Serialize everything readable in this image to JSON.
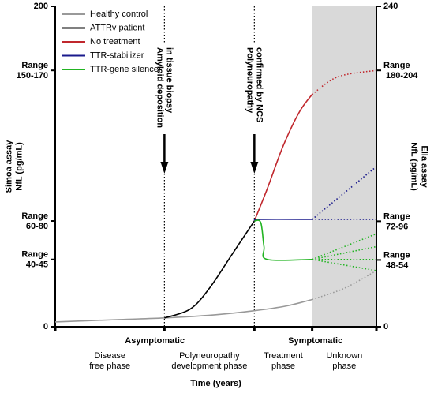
{
  "chart_data": {
    "type": "line",
    "xlabel": "Time (years)",
    "ylabel": [
      "Simoa assay",
      "NfL (pg/mL)"
    ],
    "y2label": [
      "Ella assay",
      "NfL (pg/mL)"
    ],
    "xlim": [
      0,
      100
    ],
    "ylim": [
      0,
      200
    ],
    "y2lim": [
      0,
      240
    ],
    "yticks": [
      0,
      {
        "value": 42,
        "label": "Range 40-45"
      },
      {
        "value": 66,
        "label": "Range 60-80"
      },
      {
        "value": 160,
        "label": "Range 150-170"
      },
      200
    ],
    "y2ticks": [
      0,
      {
        "value": 50,
        "label": "Range 48-54"
      },
      {
        "value": 79,
        "label": "Range 72-96"
      },
      {
        "value": 192,
        "label": "Range 180-204"
      },
      240
    ],
    "unknown_from": 80,
    "legend": "top-left",
    "series": [
      {
        "name": "Healthy control",
        "color": "#999999",
        "x": [
          0,
          20,
          34,
          50,
          62,
          72,
          80,
          90,
          100
        ],
        "values": [
          3,
          4.5,
          5.5,
          7.5,
          10,
          13,
          17,
          24,
          35
        ]
      },
      {
        "name": "ATTRv patient",
        "color": "#000000",
        "x": [
          34,
          42,
          48,
          55,
          62
        ],
        "values": [
          5.5,
          11,
          24,
          45,
          66
        ]
      },
      {
        "name": "No treatment",
        "color": "#c0272d",
        "x": [
          62,
          66,
          71,
          76,
          80,
          88,
          100
        ],
        "values": [
          66,
          86,
          113,
          134,
          145,
          156,
          160
        ]
      },
      {
        "name": "TTR-stabilizer",
        "color": "#1a1a8c",
        "x": [
          62,
          64,
          80,
          100
        ],
        "values": [
          66,
          67,
          67,
          67
        ],
        "branch_ends": [
          100
        ]
      },
      {
        "name": "TTR-gene silencer",
        "color": "#22b422",
        "x": [
          62,
          64,
          65,
          66,
          80,
          100
        ],
        "values": [
          66,
          65,
          50,
          42,
          42,
          42
        ],
        "branch_ends": [
          58,
          50,
          35
        ]
      }
    ],
    "annotations": [
      {
        "x": 34,
        "lines": [
          "Amyloid deposition",
          "in tissue biopsy"
        ]
      },
      {
        "x": 62,
        "lines": [
          "Polyneuropathy",
          "confirmed by NCS"
        ]
      }
    ],
    "stages": [
      {
        "label": "Asymptomatic",
        "span": [
          0,
          62
        ]
      },
      {
        "label": "Symptomatic",
        "span": [
          62,
          100
        ]
      }
    ],
    "phases": [
      {
        "lines": [
          "Disease",
          "free phase"
        ],
        "span": [
          0,
          34
        ]
      },
      {
        "lines": [
          "Polyneuropathy",
          "development phase"
        ],
        "span": [
          34,
          62
        ]
      },
      {
        "lines": [
          "Treatment",
          "phase"
        ],
        "span": [
          62,
          80
        ]
      },
      {
        "lines": [
          "Unknown",
          "phase"
        ],
        "span": [
          80,
          100
        ]
      }
    ]
  }
}
